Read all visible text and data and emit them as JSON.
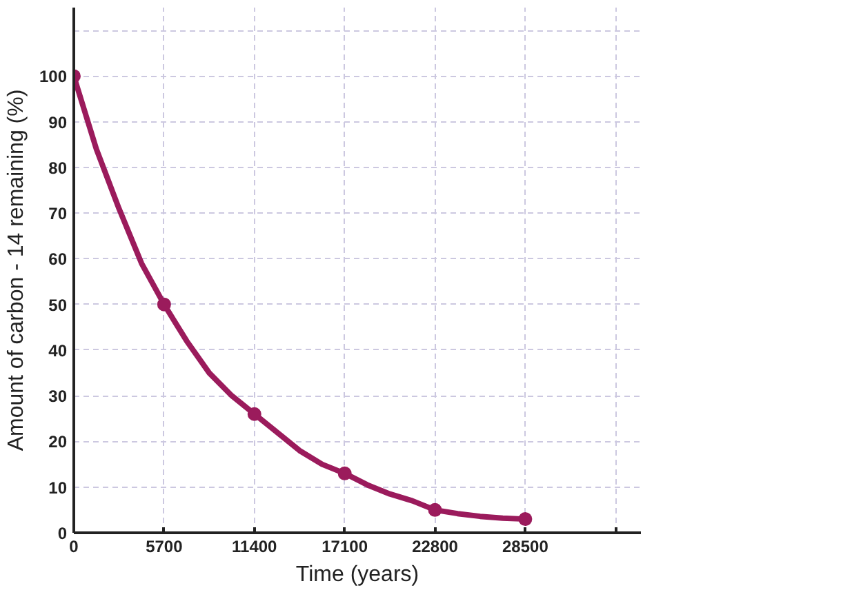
{
  "chart_data": {
    "type": "line",
    "xlabel": "Time (years)",
    "ylabel": "Amount of carbon - 14 remaining (%)",
    "series": [
      {
        "marker": "none",
        "color": "#9b1b5c",
        "x": [
          0,
          1425,
          2850,
          4275,
          5700,
          7125,
          8550,
          9975,
          11400,
          12825,
          14250,
          15675,
          17100,
          18525,
          19950,
          21375,
          22800,
          24225,
          25650,
          27075,
          28500
        ],
        "values": [
          100,
          84,
          71,
          59,
          50,
          42,
          35,
          30,
          26,
          22,
          18,
          15,
          13,
          10.5,
          8.5,
          7,
          5,
          4.2,
          3.6,
          3.2,
          3
        ]
      },
      {
        "type": "scatter",
        "marker": "circle",
        "color": "#9b1b5c",
        "x": [
          0,
          5700,
          11400,
          17100,
          22800,
          28500
        ],
        "values": [
          100,
          50,
          26,
          13,
          5,
          3
        ]
      }
    ],
    "xlim": [
      0,
      35800
    ],
    "ylim": [
      0,
      115
    ],
    "xticks": [
      0,
      5700,
      11400,
      17100,
      22800,
      28500,
      {
        "value": 34200,
        "label": null
      }
    ],
    "yticks": [
      0,
      10,
      20,
      30,
      40,
      50,
      60,
      70,
      80,
      90,
      100,
      {
        "value": 110,
        "label": null
      }
    ],
    "grid": true,
    "line_style": "solid"
  }
}
